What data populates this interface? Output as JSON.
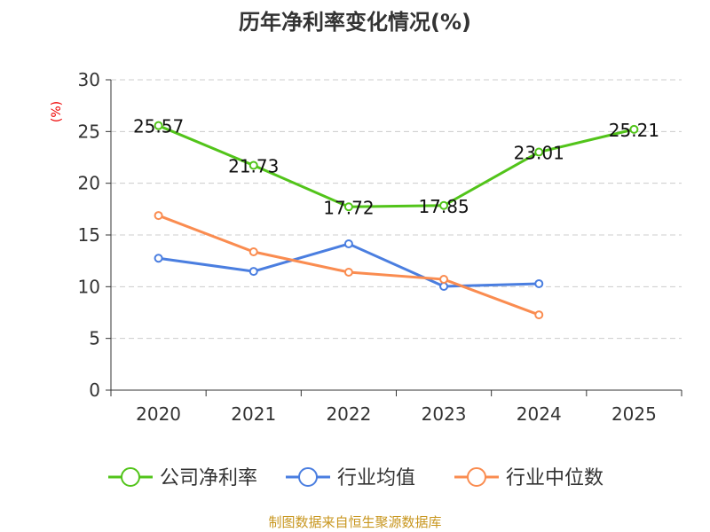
{
  "chart_data": {
    "type": "line",
    "title": "历年净利率变化情况(%)",
    "ylabel": "(%)",
    "xlabel": "",
    "categories": [
      "2020",
      "2021",
      "2022",
      "2023",
      "2024",
      "2025"
    ],
    "ylim": [
      0,
      30
    ],
    "yticks": [
      "0",
      "5",
      "10",
      "15",
      "20",
      "25",
      "30"
    ],
    "grid": true,
    "legend_position": "bottom",
    "series": [
      {
        "name": "公司净利率",
        "color": "#52c41a",
        "values": [
          25.57,
          21.73,
          17.72,
          17.85,
          23.01,
          25.21
        ],
        "labels": [
          "25.57",
          "21.73",
          "17.72",
          "17.85",
          "23.01",
          "25.21"
        ]
      },
      {
        "name": "行业均值",
        "color": "#4a7ee0",
        "values": [
          12.75,
          11.48,
          14.14,
          10.03,
          10.29,
          null
        ]
      },
      {
        "name": "行业中位数",
        "color": "#fa8c50",
        "values": [
          16.88,
          13.37,
          11.4,
          10.71,
          7.28,
          null
        ]
      }
    ]
  },
  "footer": "制图数据来自恒生聚源数据库"
}
